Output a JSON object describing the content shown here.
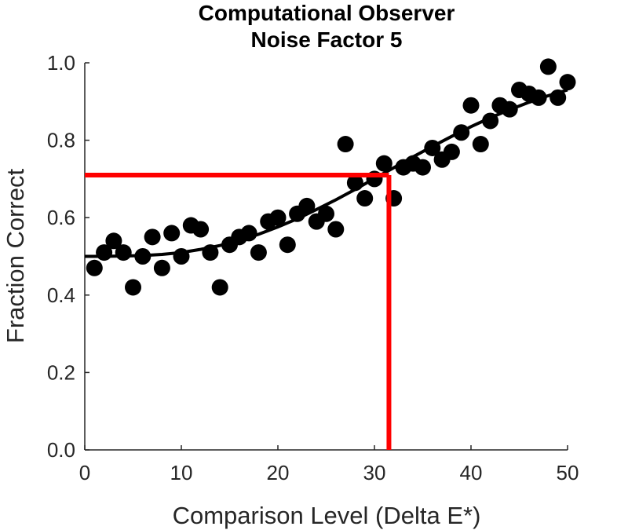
{
  "chart_data": {
    "type": "scatter",
    "title": [
      "Computational Observer",
      "Noise Factor 5"
    ],
    "xlabel": "Comparison Level (Delta E*)",
    "ylabel": "Fraction Correct",
    "xlim": [
      0,
      50
    ],
    "ylim": [
      0,
      1
    ],
    "xticks": [
      0,
      10,
      20,
      30,
      40,
      50
    ],
    "xtick_labels": [
      "0",
      "10",
      "20",
      "30",
      "40",
      "50"
    ],
    "yticks": [
      0,
      0.2,
      0.4,
      0.6,
      0.8,
      1.0
    ],
    "ytick_labels": [
      "0.0",
      "0.2",
      "0.4",
      "0.6",
      "0.8",
      "1.0"
    ],
    "grid": false,
    "points": [
      [
        1,
        0.47
      ],
      [
        2,
        0.51
      ],
      [
        3,
        0.54
      ],
      [
        4,
        0.51
      ],
      [
        5,
        0.42
      ],
      [
        6,
        0.5
      ],
      [
        7,
        0.55
      ],
      [
        8,
        0.47
      ],
      [
        9,
        0.56
      ],
      [
        10,
        0.5
      ],
      [
        11,
        0.58
      ],
      [
        12,
        0.57
      ],
      [
        13,
        0.51
      ],
      [
        14,
        0.42
      ],
      [
        15,
        0.53
      ],
      [
        16,
        0.55
      ],
      [
        17,
        0.56
      ],
      [
        18,
        0.51
      ],
      [
        19,
        0.59
      ],
      [
        20,
        0.6
      ],
      [
        21,
        0.53
      ],
      [
        22,
        0.61
      ],
      [
        23,
        0.63
      ],
      [
        24,
        0.59
      ],
      [
        25,
        0.61
      ],
      [
        26,
        0.57
      ],
      [
        27,
        0.79
      ],
      [
        28,
        0.69
      ],
      [
        29,
        0.65
      ],
      [
        30,
        0.7
      ],
      [
        31,
        0.74
      ],
      [
        32,
        0.65
      ],
      [
        33,
        0.73
      ],
      [
        34,
        0.74
      ],
      [
        35,
        0.73
      ],
      [
        36,
        0.78
      ],
      [
        37,
        0.75
      ],
      [
        38,
        0.77
      ],
      [
        39,
        0.82
      ],
      [
        40,
        0.89
      ],
      [
        41,
        0.79
      ],
      [
        42,
        0.85
      ],
      [
        43,
        0.89
      ],
      [
        44,
        0.88
      ],
      [
        45,
        0.93
      ],
      [
        46,
        0.92
      ],
      [
        47,
        0.91
      ],
      [
        48,
        0.99
      ],
      [
        49,
        0.91
      ],
      [
        50,
        0.95
      ]
    ],
    "fit_curve": [
      [
        0,
        0.5
      ],
      [
        2,
        0.5
      ],
      [
        4,
        0.501
      ],
      [
        6,
        0.502
      ],
      [
        8,
        0.505
      ],
      [
        10,
        0.51
      ],
      [
        12,
        0.518
      ],
      [
        14,
        0.528
      ],
      [
        16,
        0.541
      ],
      [
        18,
        0.557
      ],
      [
        20,
        0.576
      ],
      [
        22,
        0.597
      ],
      [
        24,
        0.621
      ],
      [
        26,
        0.646
      ],
      [
        28,
        0.673
      ],
      [
        30,
        0.701
      ],
      [
        32,
        0.729
      ],
      [
        34,
        0.757
      ],
      [
        36,
        0.784
      ],
      [
        38,
        0.81
      ],
      [
        40,
        0.835
      ],
      [
        42,
        0.858
      ],
      [
        44,
        0.879
      ],
      [
        46,
        0.898
      ],
      [
        48,
        0.915
      ],
      [
        50,
        0.93
      ]
    ],
    "threshold": {
      "x": 31.5,
      "y": 0.71,
      "color": "#ff0000"
    },
    "point_color": "#000000",
    "curve_color": "#000000"
  }
}
